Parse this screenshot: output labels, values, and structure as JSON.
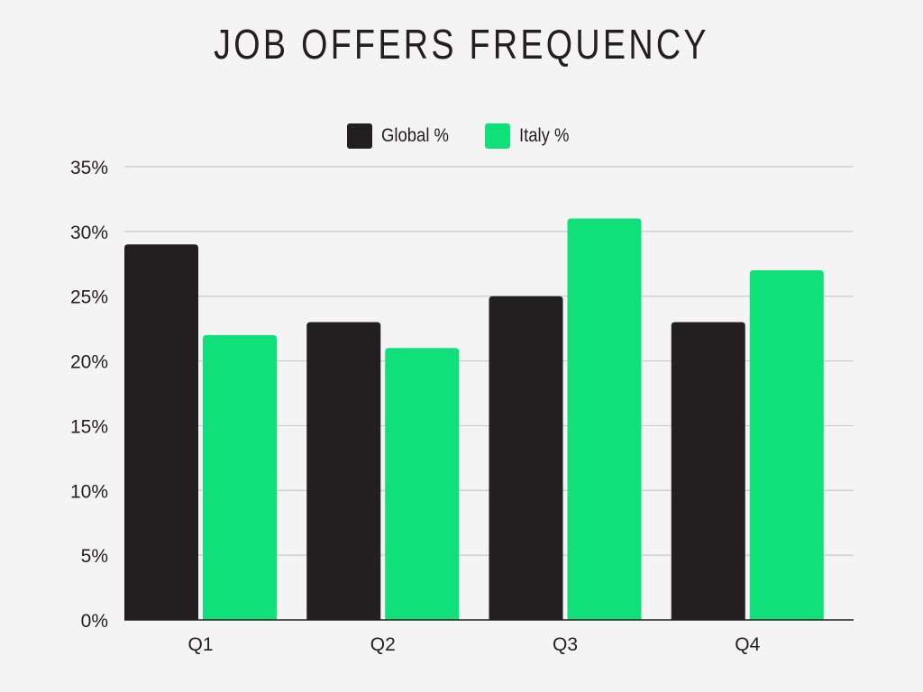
{
  "chart_data": {
    "type": "bar",
    "title": "JOB OFFERS FREQUENCY",
    "categories": [
      "Q1",
      "Q2",
      "Q3",
      "Q4"
    ],
    "series": [
      {
        "name": "Global %",
        "color": "#231f20",
        "values": [
          29,
          23,
          25,
          23
        ]
      },
      {
        "name": "Italy %",
        "color": "#0fe07a",
        "values": [
          22,
          21,
          31,
          27
        ]
      }
    ],
    "ylim": [
      0,
      35
    ],
    "yticks": [
      0,
      5,
      10,
      15,
      20,
      25,
      30,
      35
    ],
    "ytick_suffix": "%",
    "grid": true,
    "legend_position": "top-center"
  }
}
